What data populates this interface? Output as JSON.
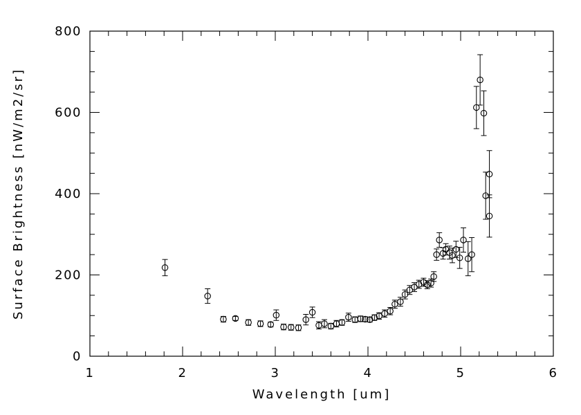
{
  "figure": {
    "background_color": "#ffffff",
    "axis_color": "#000000"
  },
  "chart_data": {
    "type": "scatter",
    "title": "",
    "xlabel": "Wavelength [um]",
    "ylabel": "Surface Brightness [nW/m2/sr]",
    "xlim": [
      1,
      6
    ],
    "ylim": [
      0,
      800
    ],
    "x_ticks": [
      1,
      2,
      3,
      4,
      5,
      6
    ],
    "y_ticks": [
      0,
      200,
      400,
      600,
      800
    ],
    "x_minor_step": 0.2,
    "y_minor_step": 50,
    "grid": false,
    "legend": "none",
    "marker": "open-circle",
    "marker_color": "#000000",
    "error_bars": true,
    "points_format": [
      "x",
      "y",
      "yerr"
    ],
    "points": [
      [
        1.81,
        218,
        20
      ],
      [
        2.27,
        148,
        18
      ],
      [
        2.44,
        91,
        7
      ],
      [
        2.57,
        93,
        5
      ],
      [
        2.71,
        83,
        7
      ],
      [
        2.84,
        80,
        7
      ],
      [
        2.95,
        78,
        6
      ],
      [
        3.01,
        101,
        13
      ],
      [
        3.09,
        72,
        7
      ],
      [
        3.17,
        71,
        7
      ],
      [
        3.25,
        70,
        7
      ],
      [
        3.33,
        90,
        13
      ],
      [
        3.4,
        108,
        13
      ],
      [
        3.47,
        76,
        9
      ],
      [
        3.53,
        80,
        10
      ],
      [
        3.6,
        74,
        7
      ],
      [
        3.66,
        80,
        8
      ],
      [
        3.72,
        83,
        7
      ],
      [
        3.79,
        96,
        10
      ],
      [
        3.86,
        90,
        7
      ],
      [
        3.92,
        92,
        7
      ],
      [
        3.97,
        91,
        6
      ],
      [
        4.02,
        90,
        6
      ],
      [
        4.07,
        95,
        7
      ],
      [
        4.12,
        99,
        8
      ],
      [
        4.18,
        105,
        9
      ],
      [
        4.24,
        111,
        9
      ],
      [
        4.29,
        128,
        10
      ],
      [
        4.35,
        134,
        11
      ],
      [
        4.4,
        152,
        11
      ],
      [
        4.45,
        163,
        11
      ],
      [
        4.5,
        170,
        11
      ],
      [
        4.55,
        177,
        10
      ],
      [
        4.6,
        182,
        10
      ],
      [
        4.64,
        176,
        10
      ],
      [
        4.68,
        180,
        10
      ],
      [
        4.71,
        196,
        12
      ],
      [
        4.74,
        250,
        14
      ],
      [
        4.77,
        286,
        18
      ],
      [
        4.81,
        253,
        14
      ],
      [
        4.84,
        263,
        14
      ],
      [
        4.88,
        255,
        16
      ],
      [
        4.91,
        248,
        18
      ],
      [
        4.95,
        263,
        20
      ],
      [
        4.99,
        242,
        26
      ],
      [
        5.03,
        286,
        30
      ],
      [
        5.08,
        240,
        42
      ],
      [
        5.12,
        250,
        42
      ],
      [
        5.17,
        612,
        52
      ],
      [
        5.21,
        680,
        62
      ],
      [
        5.25,
        598,
        55
      ],
      [
        5.27,
        395,
        58
      ],
      [
        5.31,
        448,
        58
      ],
      [
        5.31,
        345,
        52
      ]
    ]
  }
}
